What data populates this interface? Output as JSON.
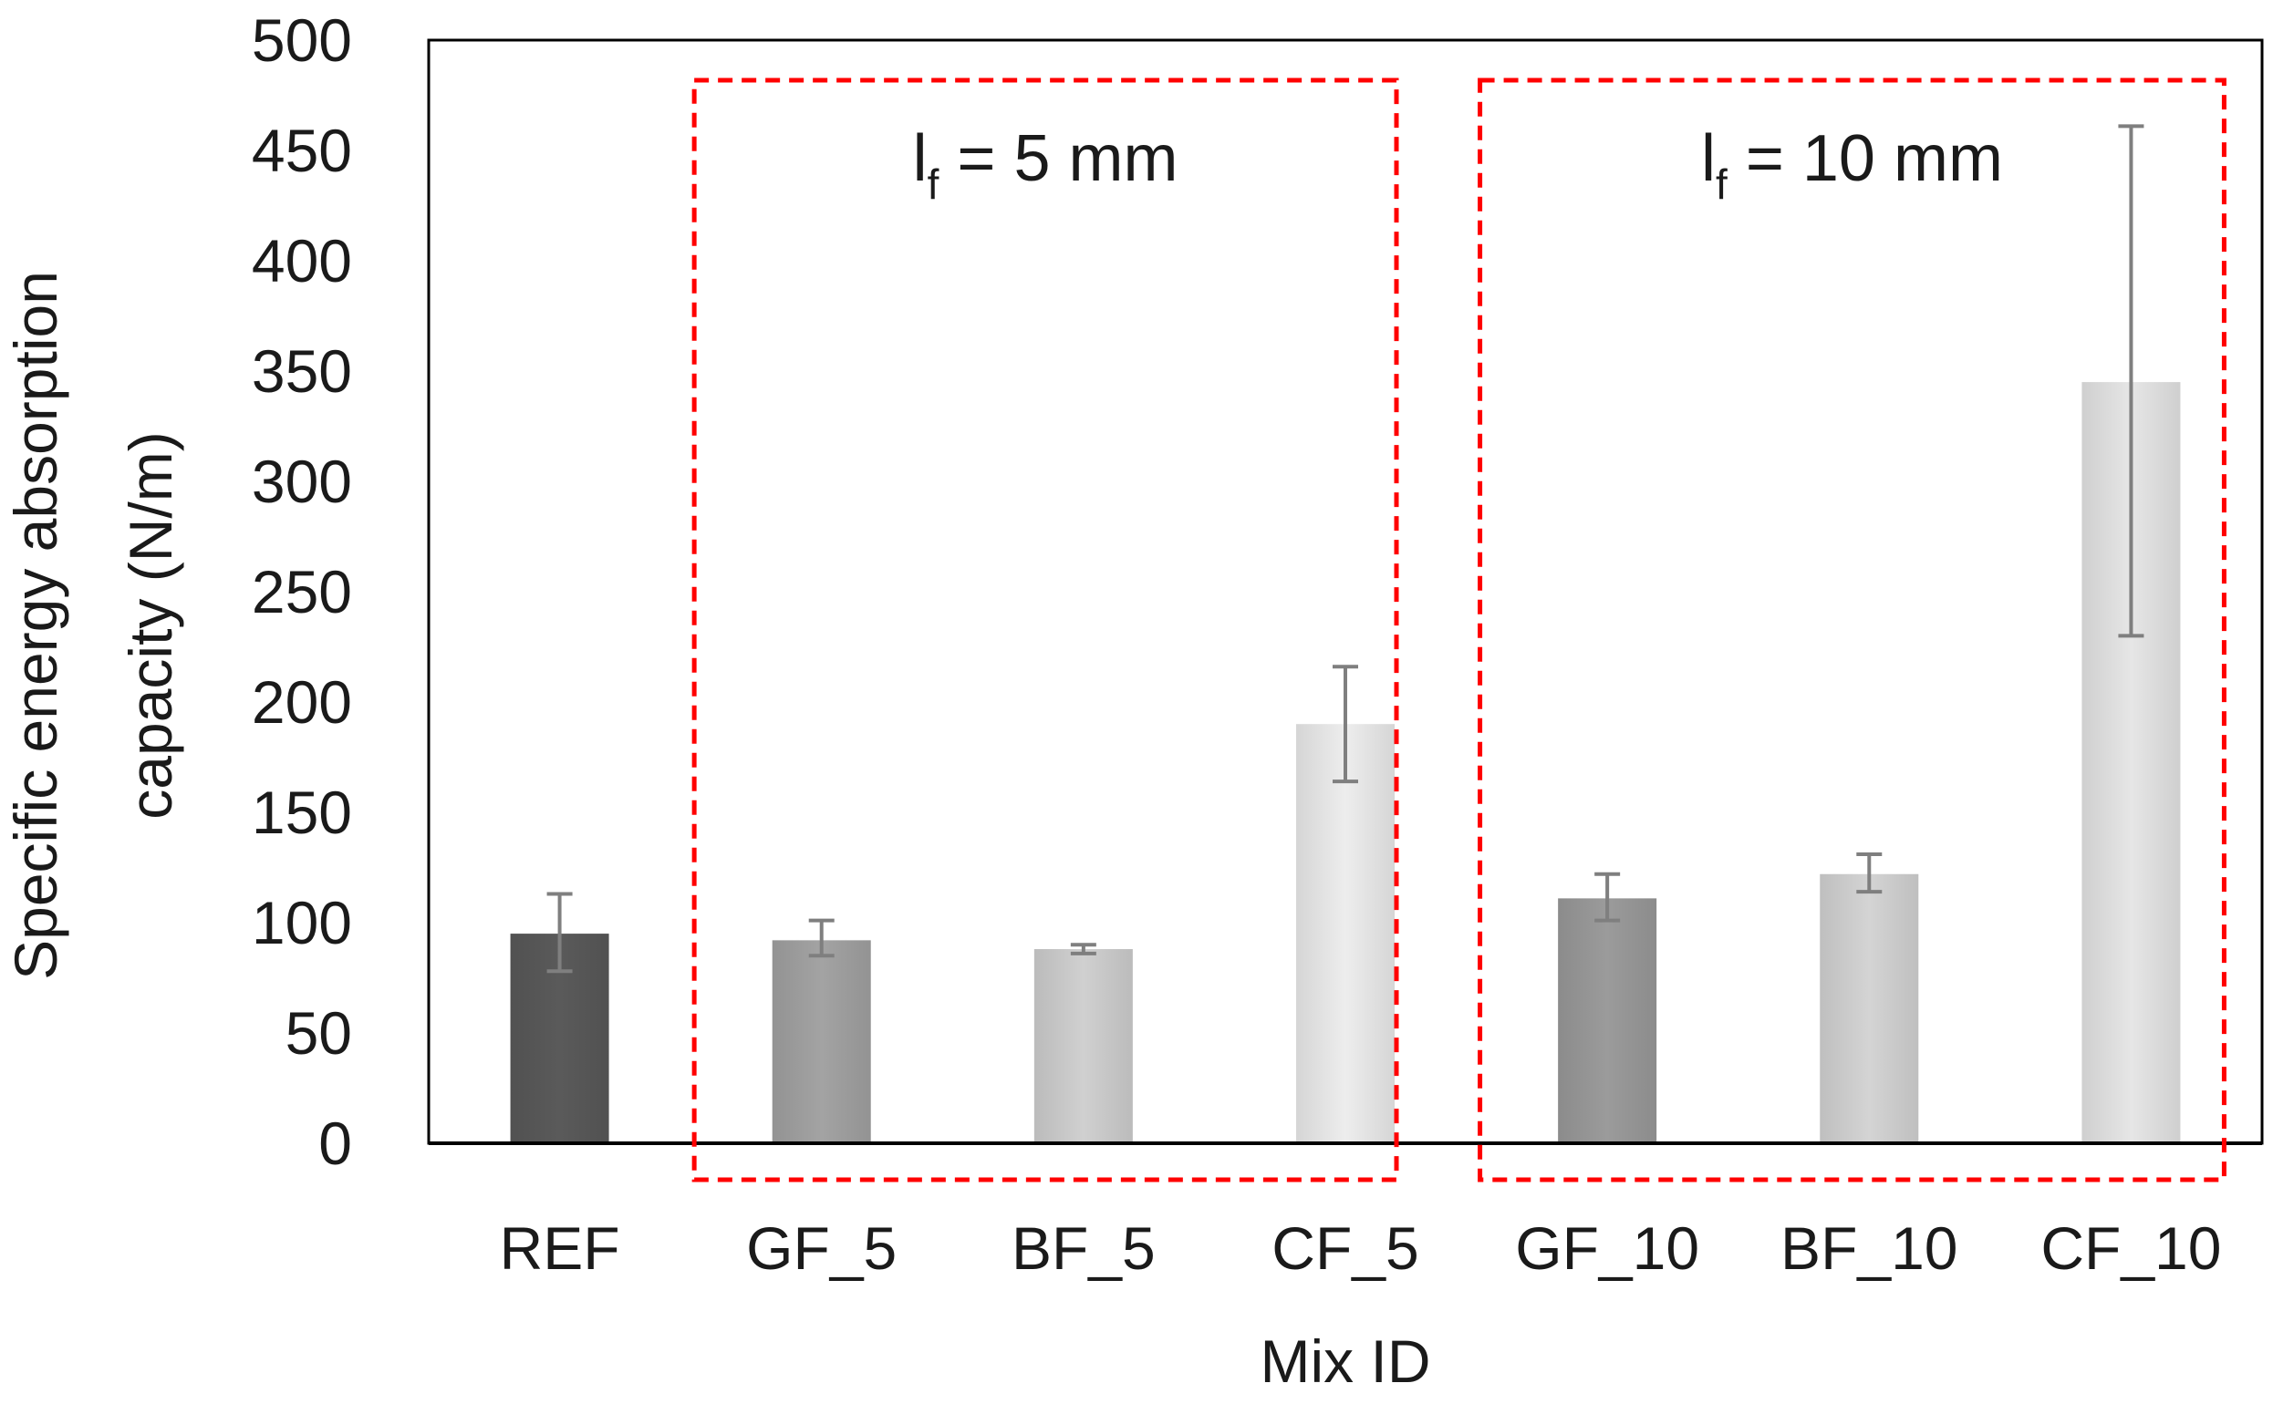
{
  "chart_data": {
    "type": "bar",
    "title": "",
    "xlabel": "Mix ID",
    "ylabel_lines": [
      "Specific energy absorption",
      "capacity  (N/m)"
    ],
    "ylim": [
      0,
      500
    ],
    "yticks": [
      0,
      50,
      100,
      150,
      200,
      250,
      300,
      350,
      400,
      450,
      500
    ],
    "grid": false,
    "categories": [
      "REF",
      "GF_5",
      "BF_5",
      "CF_5",
      "GF_10",
      "BF_10",
      "CF_10"
    ],
    "values": [
      95,
      92,
      88,
      190,
      111,
      122,
      345
    ],
    "error_low": [
      78,
      85,
      86,
      164,
      101,
      114,
      230
    ],
    "error_high": [
      113,
      101,
      90,
      216,
      122,
      131,
      461
    ],
    "bar_colors": [
      "#5a5a5a",
      "#a3a3a3",
      "#d0d0d0",
      "#ededed",
      "#9b9b9b",
      "#d4d4d4",
      "#e6e6e6"
    ],
    "error_color": "#7f7f7f",
    "groups": [
      {
        "label_main": "l",
        "label_sub": "f",
        "label_rest": " = 5 mm",
        "from_category": "GF_5",
        "to_category": "CF_5"
      },
      {
        "label_main": "l",
        "label_sub": "f",
        "label_rest": " = 10 mm",
        "from_category": "GF_10",
        "to_category": "CF_10"
      }
    ],
    "group_box_color": "#ff0000"
  }
}
